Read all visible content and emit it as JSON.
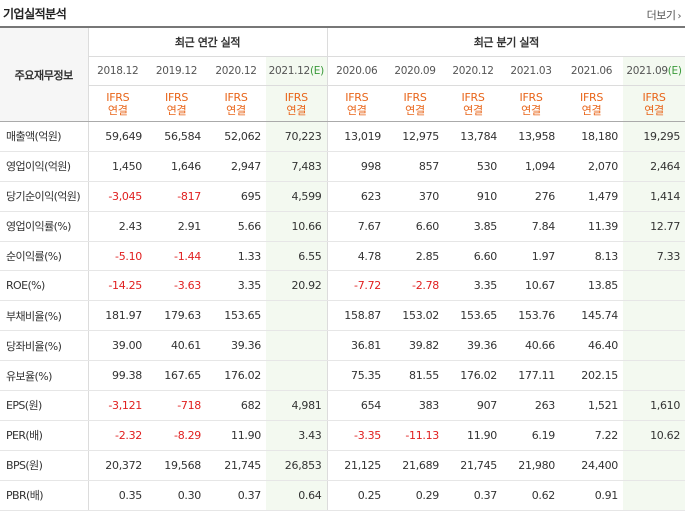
{
  "header": {
    "title": "기업실적분석",
    "more_label": "더보기",
    "more_arrow": "›"
  },
  "table": {
    "row_header_label": "주요재무정보",
    "groups": [
      "최근 연간 실적",
      "최근 분기 실적"
    ],
    "columns": [
      {
        "period": "2018.12",
        "estimate_mark": "",
        "type": "IFRS",
        "basis": "연결"
      },
      {
        "period": "2019.12",
        "estimate_mark": "",
        "type": "IFRS",
        "basis": "연결"
      },
      {
        "period": "2020.12",
        "estimate_mark": "",
        "type": "IFRS",
        "basis": "연결"
      },
      {
        "period": "2021.12",
        "estimate_mark": "(E)",
        "type": "IFRS",
        "basis": "연결"
      },
      {
        "period": "2020.06",
        "estimate_mark": "",
        "type": "IFRS",
        "basis": "연결"
      },
      {
        "period": "2020.09",
        "estimate_mark": "",
        "type": "IFRS",
        "basis": "연결"
      },
      {
        "period": "2020.12",
        "estimate_mark": "",
        "type": "IFRS",
        "basis": "연결"
      },
      {
        "period": "2021.03",
        "estimate_mark": "",
        "type": "IFRS",
        "basis": "연결"
      },
      {
        "period": "2021.06",
        "estimate_mark": "",
        "type": "IFRS",
        "basis": "연결"
      },
      {
        "period": "2021.09",
        "estimate_mark": "(E)",
        "type": "IFRS",
        "basis": "연결"
      }
    ],
    "rows": [
      {
        "label": "매출액(억원)",
        "values": [
          "59,649",
          "56,584",
          "52,062",
          "70,223",
          "13,019",
          "12,975",
          "13,784",
          "13,958",
          "18,180",
          "19,295"
        ]
      },
      {
        "label": "영업이익(억원)",
        "values": [
          "1,450",
          "1,646",
          "2,947",
          "7,483",
          "998",
          "857",
          "530",
          "1,094",
          "2,070",
          "2,464"
        ]
      },
      {
        "label": "당기순이익(억원)",
        "values": [
          "-3,045",
          "-817",
          "695",
          "4,599",
          "623",
          "370",
          "910",
          "276",
          "1,479",
          "1,414"
        ]
      },
      {
        "label": "영업이익률(%)",
        "values": [
          "2.43",
          "2.91",
          "5.66",
          "10.66",
          "7.67",
          "6.60",
          "3.85",
          "7.84",
          "11.39",
          "12.77"
        ]
      },
      {
        "label": "순이익률(%)",
        "values": [
          "-5.10",
          "-1.44",
          "1.33",
          "6.55",
          "4.78",
          "2.85",
          "6.60",
          "1.97",
          "8.13",
          "7.33"
        ]
      },
      {
        "label": "ROE(%)",
        "values": [
          "-14.25",
          "-3.63",
          "3.35",
          "20.92",
          "-7.72",
          "-2.78",
          "3.35",
          "10.67",
          "13.85",
          ""
        ]
      },
      {
        "label": "부채비율(%)",
        "values": [
          "181.97",
          "179.63",
          "153.65",
          "",
          "158.87",
          "153.02",
          "153.65",
          "153.76",
          "145.74",
          ""
        ]
      },
      {
        "label": "당좌비율(%)",
        "values": [
          "39.00",
          "40.61",
          "39.36",
          "",
          "36.81",
          "39.82",
          "39.36",
          "40.66",
          "46.40",
          ""
        ]
      },
      {
        "label": "유보율(%)",
        "values": [
          "99.38",
          "167.65",
          "176.02",
          "",
          "75.35",
          "81.55",
          "176.02",
          "177.11",
          "202.15",
          ""
        ]
      },
      {
        "label": "EPS(원)",
        "values": [
          "-3,121",
          "-718",
          "682",
          "4,981",
          "654",
          "383",
          "907",
          "263",
          "1,521",
          "1,610"
        ]
      },
      {
        "label": "PER(배)",
        "values": [
          "-2.32",
          "-8.29",
          "11.90",
          "3.43",
          "-3.35",
          "-11.13",
          "11.90",
          "6.19",
          "7.22",
          "10.62"
        ]
      },
      {
        "label": "BPS(원)",
        "values": [
          "20,372",
          "19,568",
          "21,745",
          "26,853",
          "21,125",
          "21,689",
          "21,745",
          "21,980",
          "24,400",
          ""
        ]
      },
      {
        "label": "PBR(배)",
        "values": [
          "0.35",
          "0.30",
          "0.37",
          "0.64",
          "0.25",
          "0.29",
          "0.37",
          "0.62",
          "0.91",
          ""
        ]
      }
    ],
    "group_break_rows": [
      3,
      6,
      9
    ],
    "colors": {
      "ifrs": "#e8651a",
      "negative": "#e02020",
      "estimate_bg": "#f3f9f0",
      "estimate_mark": "#3a9a3a"
    }
  }
}
